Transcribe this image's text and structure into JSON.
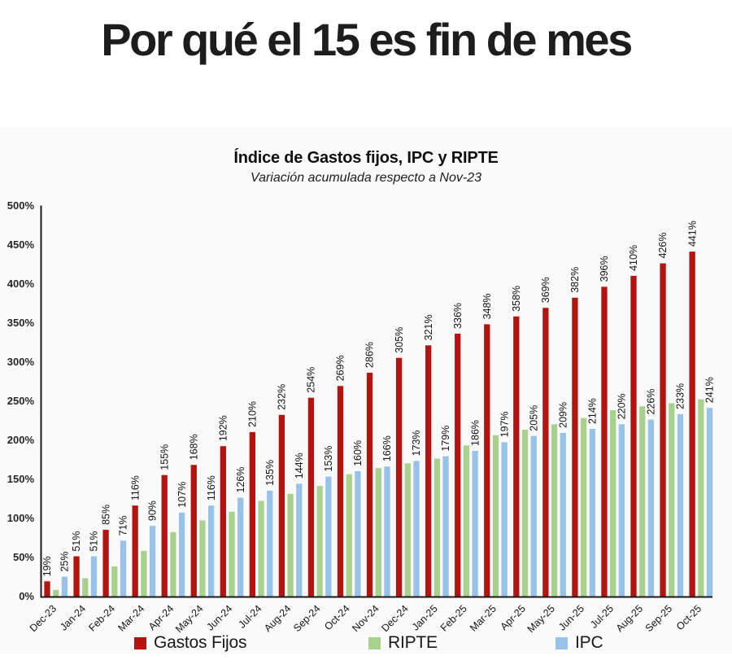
{
  "page": {
    "title": "Por qué el 15 es fin de mes"
  },
  "chart": {
    "title": "Índice de Gastos fijos, IPC y RIPTE",
    "subtitle": "Variación acumulada respecto a Nov-23"
  },
  "chart_data": {
    "type": "bar",
    "title": "Índice de Gastos fijos, IPC y RIPTE",
    "subtitle": "Variación acumulada respecto a Nov-23",
    "categories": [
      "Dec-23",
      "Jan-24",
      "Feb-24",
      "Mar-24",
      "Apr-24",
      "May-24",
      "Jun-24",
      "Jul-24",
      "Aug-24",
      "Sep-24",
      "Oct-24",
      "Nov-24",
      "Dec-24",
      "Jan-25",
      "Feb-25",
      "Mar-25",
      "Apr-25",
      "May-25",
      "Jun-25",
      "Jul-25",
      "Aug-25",
      "Sep-25",
      "Oct-25"
    ],
    "series": [
      {
        "name": "Gastos Fijos",
        "color": "#b41410",
        "show_value_labels": true,
        "values": [
          19,
          51,
          85,
          116,
          155,
          168,
          192,
          210,
          232,
          254,
          269,
          286,
          305,
          321,
          336,
          348,
          358,
          369,
          382,
          396,
          410,
          426,
          441
        ]
      },
      {
        "name": "RIPTE",
        "color": "#a9d18e",
        "show_value_labels": false,
        "values": [
          8,
          23,
          38,
          58,
          82,
          97,
          108,
          122,
          131,
          141,
          156,
          164,
          170,
          176,
          193,
          206,
          213,
          220,
          228,
          238,
          243,
          247,
          252
        ]
      },
      {
        "name": "IPC",
        "color": "#98c2e8",
        "show_value_labels": true,
        "values": [
          25,
          51,
          71,
          90,
          107,
          116,
          126,
          135,
          144,
          153,
          160,
          166,
          173,
          179,
          186,
          197,
          205,
          209,
          214,
          220,
          226,
          233,
          241
        ]
      }
    ],
    "value_suffix": "%",
    "ylim": [
      0,
      500
    ],
    "ytick_step": 50,
    "ytick_labels": [
      "0%",
      "50%",
      "100%",
      "150%",
      "200%",
      "250%",
      "300%",
      "350%",
      "400%",
      "450%",
      "500%"
    ],
    "grid": false,
    "legend_position": "bottom",
    "axis_color": "#1a1a1a"
  }
}
